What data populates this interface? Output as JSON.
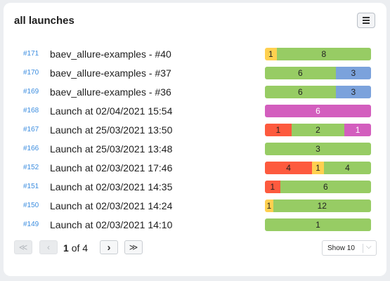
{
  "widget": {
    "title": "all launches",
    "menu_icon": "hamburger-menu-icon"
  },
  "colors": {
    "failed": "#fd5a3e",
    "broken": "#ffd050",
    "passed": "#97cc64",
    "unknown": "#d35ebe",
    "retried": "#7ba2dc",
    "link": "#3d8ee0"
  },
  "launches": [
    {
      "id": "#171",
      "name": "baev_allure-examples - #40",
      "segments": [
        {
          "status": "broken",
          "count": 1
        },
        {
          "status": "passed",
          "count": 8
        }
      ]
    },
    {
      "id": "#170",
      "name": "baev_allure-examples - #37",
      "segments": [
        {
          "status": "passed",
          "count": 6
        },
        {
          "status": "retried",
          "count": 3
        }
      ]
    },
    {
      "id": "#169",
      "name": "baev_allure-examples - #36",
      "segments": [
        {
          "status": "passed",
          "count": 6
        },
        {
          "status": "retried",
          "count": 3
        }
      ]
    },
    {
      "id": "#168",
      "name": "Launch at 02/04/2021 15:54",
      "segments": [
        {
          "status": "unknown",
          "count": 6
        }
      ]
    },
    {
      "id": "#167",
      "name": "Launch at 25/03/2021 13:50",
      "segments": [
        {
          "status": "failed",
          "count": 1
        },
        {
          "status": "passed",
          "count": 2
        },
        {
          "status": "unknown",
          "count": 1
        }
      ]
    },
    {
      "id": "#166",
      "name": "Launch at 25/03/2021 13:48",
      "segments": [
        {
          "status": "passed",
          "count": 3
        }
      ]
    },
    {
      "id": "#152",
      "name": "Launch at 02/03/2021 17:46",
      "segments": [
        {
          "status": "failed",
          "count": 4
        },
        {
          "status": "broken",
          "count": 1
        },
        {
          "status": "passed",
          "count": 4
        }
      ]
    },
    {
      "id": "#151",
      "name": "Launch at 02/03/2021 14:35",
      "segments": [
        {
          "status": "failed",
          "count": 1
        },
        {
          "status": "passed",
          "count": 6
        }
      ]
    },
    {
      "id": "#150",
      "name": "Launch at 02/03/2021 14:24",
      "segments": [
        {
          "status": "broken",
          "count": 1
        },
        {
          "status": "passed",
          "count": 12
        }
      ]
    },
    {
      "id": "#149",
      "name": "Launch at 02/03/2021 14:10",
      "segments": [
        {
          "status": "passed",
          "count": 1
        }
      ]
    }
  ],
  "pagination": {
    "first_icon": "double-chevron-left-icon",
    "prev_icon": "chevron-left-icon",
    "next_icon": "chevron-right-icon",
    "last_icon": "double-chevron-right-icon",
    "current_page": "1",
    "of_label": "of",
    "total_pages": "4",
    "page_size_label": "Show 10"
  }
}
